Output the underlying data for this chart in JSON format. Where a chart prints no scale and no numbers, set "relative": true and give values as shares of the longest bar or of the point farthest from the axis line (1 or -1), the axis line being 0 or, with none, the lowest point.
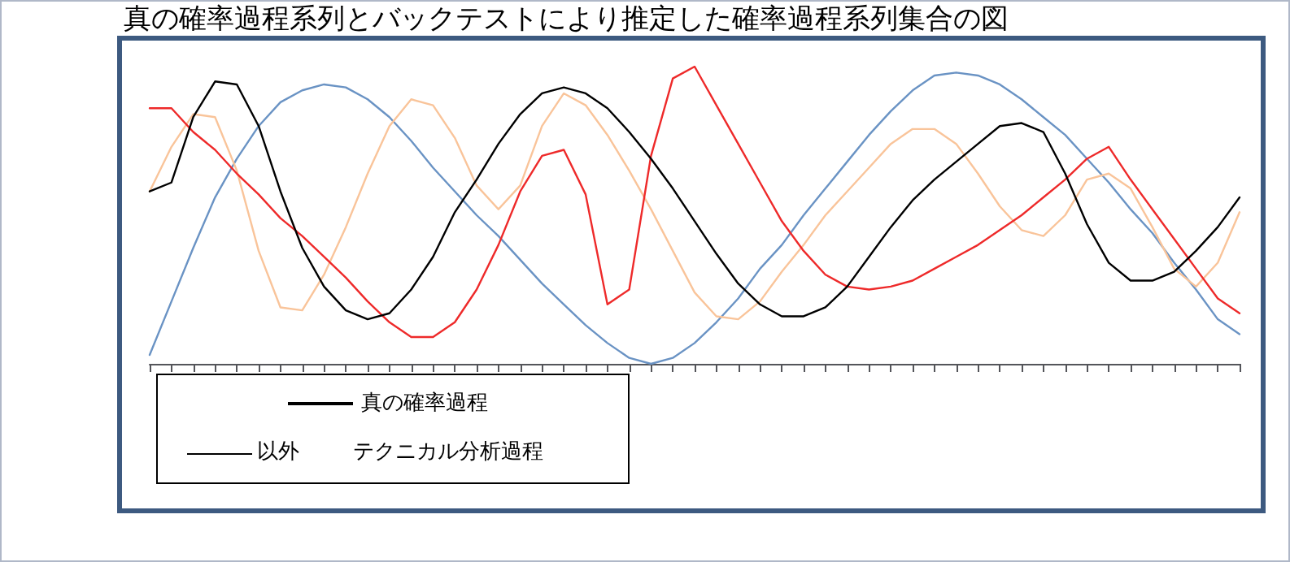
{
  "chart_data": {
    "type": "line",
    "title": "真の確率過程系列とバックテストにより推定した確率過程系列集合の図",
    "relative": true,
    "grid": false,
    "legend": "bottom left",
    "marker": "none",
    "line_style": "solid",
    "annotations": [
      "以外",
      "テクニカル分析過程"
    ],
    "categories": [
      null,
      null,
      null,
      null,
      null,
      null,
      null,
      null,
      null,
      null,
      null,
      null,
      null,
      null,
      null,
      null,
      null,
      null,
      null,
      null,
      null,
      null,
      null,
      null,
      null,
      null,
      null,
      null,
      null,
      null,
      null,
      null,
      null,
      null,
      null,
      null,
      null,
      null,
      null,
      null,
      null,
      null,
      null,
      null,
      null,
      null,
      null,
      null,
      null,
      null,
      null
    ],
    "series": [
      {
        "color": "#6a93c4",
        "values": [
          0.03,
          0.21,
          0.39,
          0.56,
          0.69,
          0.8,
          0.88,
          0.92,
          0.94,
          0.93,
          0.89,
          0.83,
          0.75,
          0.66,
          0.58,
          0.5,
          0.43,
          0.35,
          0.27,
          0.2,
          0.13,
          0.07,
          0.02,
          0.0,
          0.02,
          0.07,
          0.14,
          0.22,
          0.32,
          0.4,
          0.5,
          0.59,
          0.68,
          0.77,
          0.85,
          0.92,
          0.97,
          0.98,
          0.97,
          0.94,
          0.89,
          0.83,
          0.77,
          0.69,
          0.61,
          0.52,
          0.44,
          0.34,
          0.25,
          0.15,
          0.1
        ]
      },
      {
        "color": "#f9c49a",
        "values": [
          0.58,
          0.73,
          0.84,
          0.83,
          0.65,
          0.38,
          0.19,
          0.18,
          0.3,
          0.46,
          0.64,
          0.8,
          0.89,
          0.87,
          0.76,
          0.6,
          0.52,
          0.6,
          0.8,
          0.91,
          0.87,
          0.77,
          0.65,
          0.52,
          0.38,
          0.24,
          0.16,
          0.15,
          0.21,
          0.31,
          0.4,
          0.5,
          0.58,
          0.66,
          0.74,
          0.79,
          0.79,
          0.74,
          0.64,
          0.53,
          0.45,
          0.43,
          0.5,
          0.62,
          0.64,
          0.59,
          0.46,
          0.32,
          0.26,
          0.34,
          0.51
        ]
      },
      {
        "color": "#ee2a2a",
        "values": [
          0.86,
          0.86,
          0.78,
          0.72,
          0.64,
          0.57,
          0.49,
          0.43,
          0.36,
          0.29,
          0.21,
          0.14,
          0.09,
          0.09,
          0.14,
          0.25,
          0.4,
          0.58,
          0.7,
          0.72,
          0.57,
          0.2,
          0.25,
          0.7,
          0.96,
          1.0,
          0.87,
          0.74,
          0.61,
          0.48,
          0.38,
          0.3,
          0.26,
          0.25,
          0.26,
          0.28,
          0.32,
          0.36,
          0.4,
          0.45,
          0.5,
          0.56,
          0.62,
          0.69,
          0.73,
          0.62,
          0.52,
          0.42,
          0.32,
          0.22,
          0.17
        ]
      },
      {
        "name": "真の確率過程",
        "color": "#000000",
        "values": [
          0.58,
          0.61,
          0.83,
          0.95,
          0.94,
          0.8,
          0.58,
          0.39,
          0.26,
          0.18,
          0.15,
          0.17,
          0.25,
          0.36,
          0.51,
          0.62,
          0.74,
          0.84,
          0.91,
          0.93,
          0.91,
          0.86,
          0.78,
          0.69,
          0.59,
          0.48,
          0.37,
          0.27,
          0.2,
          0.16,
          0.16,
          0.19,
          0.26,
          0.36,
          0.46,
          0.55,
          0.62,
          0.68,
          0.74,
          0.8,
          0.81,
          0.78,
          0.64,
          0.47,
          0.34,
          0.28,
          0.28,
          0.31,
          0.38,
          0.46,
          0.56
        ]
      }
    ]
  }
}
